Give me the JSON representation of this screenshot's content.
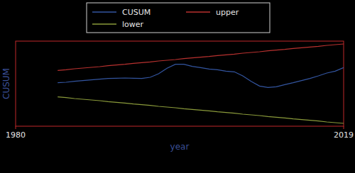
{
  "chart_data": {
    "type": "line",
    "x_label": "year",
    "y_label": "CUSUM",
    "x": [
      1985,
      1986,
      1987,
      1988,
      1989,
      1990,
      1991,
      1992,
      1993,
      1994,
      1995,
      1996,
      1997,
      1998,
      1999,
      2000,
      2001,
      2002,
      2003,
      2004,
      2005,
      2006,
      2007,
      2008,
      2009,
      2010,
      2011,
      2012,
      2013,
      2014,
      2015,
      2016,
      2017,
      2018,
      2019
    ],
    "series": [
      {
        "name": "CUSUM",
        "color": "#3355a0",
        "values": [
          0.4,
          0.6,
          1.0,
          1.3,
          1.6,
          1.9,
          2.2,
          2.3,
          2.4,
          2.3,
          2.2,
          2.7,
          4.2,
          6.5,
          8.2,
          8.2,
          7.3,
          6.8,
          6.2,
          5.9,
          5.3,
          5.0,
          3.3,
          1.0,
          -1.0,
          -1.6,
          -1.3,
          -0.4,
          0.4,
          1.3,
          2.2,
          3.3,
          4.5,
          5.3,
          6.8
        ]
      },
      {
        "name": "upper",
        "color": "#b8312f",
        "values": [
          5.6,
          5.9,
          6.3,
          6.6,
          6.9,
          7.2,
          7.6,
          7.9,
          8.2,
          8.6,
          8.9,
          9.2,
          9.6,
          9.9,
          10.2,
          10.6,
          10.9,
          11.2,
          11.5,
          11.9,
          12.2,
          12.5,
          12.9,
          13.2,
          13.5,
          13.9,
          14.2,
          14.5,
          14.9,
          15.2,
          15.5,
          15.8,
          16.2,
          16.5,
          16.8
        ]
      },
      {
        "name": "lower",
        "color": "#8a9a3a",
        "values": [
          -5.6,
          -5.9,
          -6.3,
          -6.6,
          -6.9,
          -7.2,
          -7.6,
          -7.9,
          -8.2,
          -8.6,
          -8.9,
          -9.2,
          -9.6,
          -9.9,
          -10.2,
          -10.6,
          -10.9,
          -11.2,
          -11.5,
          -11.9,
          -12.2,
          -12.5,
          -12.9,
          -13.2,
          -13.5,
          -13.9,
          -14.2,
          -14.5,
          -14.9,
          -15.2,
          -15.5,
          -15.8,
          -16.2,
          -16.5,
          -16.8
        ]
      }
    ],
    "xlim": [
      1980,
      2019
    ],
    "xticks": [
      1980,
      2019
    ],
    "ylim": [
      -18,
      18
    ],
    "tick_labels": "x",
    "legend": "top",
    "grid": false
  }
}
